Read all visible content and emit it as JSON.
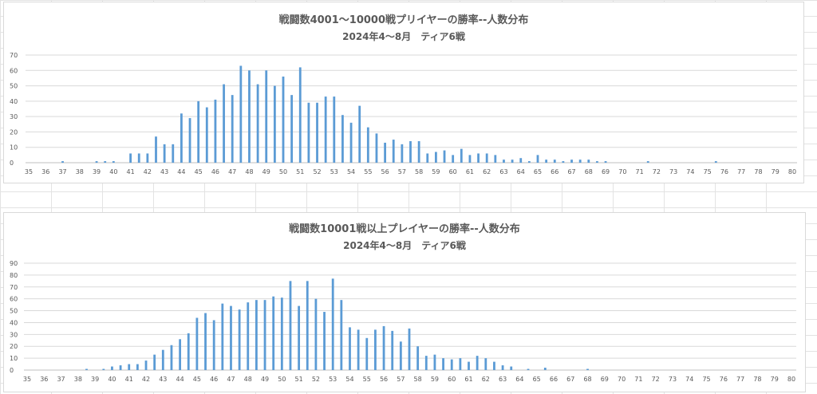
{
  "chart_data": [
    {
      "type": "bar",
      "title": "戦闘数4001～10000戦プリイヤーの勝率--人数分布",
      "subtitle": "2024年4～8月　ティア6戦",
      "color": "#5b9bd5",
      "grid": true,
      "ylim": [
        0,
        70
      ],
      "y_ticks": [
        0,
        10,
        20,
        30,
        40,
        50,
        60,
        70
      ],
      "xlim": [
        35,
        80
      ],
      "x_ticks": [
        35,
        36,
        37,
        38,
        39,
        40,
        41,
        42,
        43,
        44,
        45,
        46,
        47,
        48,
        49,
        50,
        51,
        52,
        53,
        54,
        55,
        56,
        57,
        58,
        59,
        60,
        61,
        62,
        63,
        64,
        65,
        66,
        67,
        68,
        69,
        70,
        71,
        72,
        73,
        74,
        75,
        76,
        77,
        78,
        79,
        80
      ],
      "x": [
        37,
        39,
        39.5,
        40,
        41,
        41.5,
        42,
        42.5,
        43,
        43.5,
        44,
        44.5,
        45,
        45.5,
        46,
        46.5,
        47,
        47.5,
        48,
        48.5,
        49,
        49.5,
        50,
        50.5,
        51,
        51.5,
        52,
        52.5,
        53,
        53.5,
        54,
        54.5,
        55,
        55.5,
        56,
        56.5,
        57,
        57.5,
        58,
        58.5,
        59,
        59.5,
        60,
        60.5,
        61,
        61.5,
        62,
        62.5,
        63,
        63.5,
        64,
        64.5,
        65,
        65.5,
        66,
        66.5,
        67,
        67.5,
        68,
        68.5,
        69,
        71.5,
        75.5
      ],
      "values": [
        1,
        1,
        1,
        1,
        6,
        6,
        6,
        17,
        12,
        12,
        32,
        29,
        40,
        36,
        41,
        51,
        44,
        63,
        60,
        51,
        60,
        50,
        56,
        44,
        62,
        39,
        39,
        43,
        43,
        31,
        26,
        37,
        23,
        19,
        13,
        15,
        12,
        14,
        14,
        6,
        7,
        8,
        5,
        9,
        5,
        6,
        6,
        5,
        2,
        2,
        3,
        1,
        5,
        2,
        2,
        1,
        2,
        2,
        2,
        1,
        1,
        1,
        1
      ]
    },
    {
      "type": "bar",
      "title": "戦闘数10001戦以上プレイヤーの勝率--人数分布",
      "subtitle": "2024年4～8月　ティア6戦",
      "color": "#5b9bd5",
      "grid": true,
      "ylim": [
        0,
        90
      ],
      "y_ticks": [
        0,
        10,
        20,
        30,
        40,
        50,
        60,
        70,
        80,
        90
      ],
      "xlim": [
        35,
        80
      ],
      "x_ticks": [
        35,
        36,
        37,
        38,
        39,
        40,
        41,
        42,
        43,
        44,
        45,
        46,
        47,
        48,
        49,
        50,
        51,
        52,
        53,
        54,
        55,
        56,
        57,
        58,
        59,
        60,
        61,
        62,
        63,
        64,
        65,
        66,
        67,
        68,
        69,
        70,
        71,
        72,
        73,
        74,
        75,
        76,
        77,
        78,
        79,
        80
      ],
      "x": [
        38.5,
        39.5,
        40,
        40.5,
        41,
        41.5,
        42,
        42.5,
        43,
        43.5,
        44,
        44.5,
        45,
        45.5,
        46,
        46.5,
        47,
        47.5,
        48,
        48.5,
        49,
        49.5,
        50,
        50.5,
        51,
        51.5,
        52,
        52.5,
        53,
        53.5,
        54,
        54.5,
        55,
        55.5,
        56,
        56.5,
        57,
        57.5,
        58,
        58.5,
        59,
        59.5,
        60,
        60.5,
        61,
        61.5,
        62,
        62.5,
        63,
        63.5,
        64.5,
        65.5,
        68
      ],
      "values": [
        1,
        1,
        3,
        4,
        5,
        5,
        8,
        13,
        17,
        21,
        26,
        31,
        44,
        48,
        42,
        56,
        54,
        51,
        57,
        59,
        59,
        62,
        61,
        75,
        54,
        75,
        60,
        49,
        77,
        59,
        36,
        34,
        27,
        34,
        37,
        33,
        24,
        35,
        20,
        12,
        13,
        10,
        9,
        10,
        7,
        12,
        10,
        7,
        4,
        3,
        1,
        2,
        1
      ]
    }
  ]
}
